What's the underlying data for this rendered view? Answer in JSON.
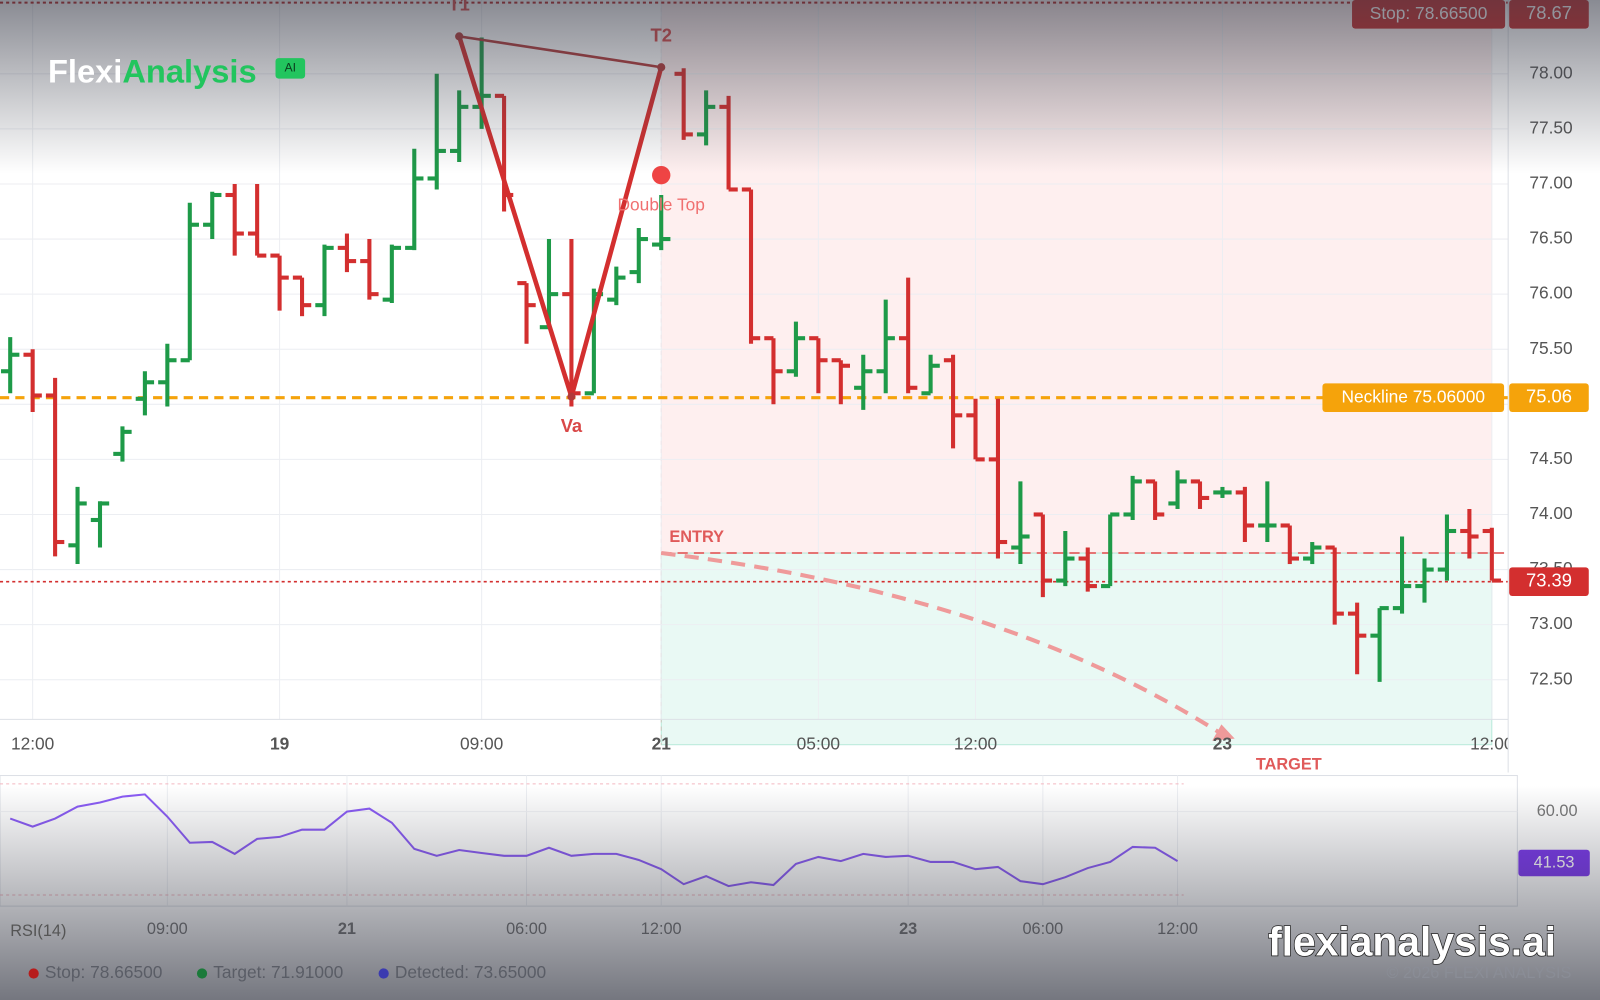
{
  "chart_data": {
    "type": "ohlc",
    "categories": [
      null,
      "12:00",
      null,
      null,
      null,
      null,
      null,
      null,
      null,
      null,
      null,
      null,
      "19",
      null,
      null,
      null,
      null,
      null,
      null,
      null,
      null,
      "09:00",
      null,
      null,
      null,
      null,
      null,
      null,
      null,
      "21",
      null,
      null,
      null,
      null,
      null,
      null,
      "05:00",
      null,
      null,
      null,
      null,
      null,
      null,
      "12:00",
      null,
      null,
      null,
      null,
      null,
      null,
      null,
      null,
      null,
      null,
      "23",
      null,
      null,
      null,
      null,
      null,
      null,
      null,
      null,
      null,
      null,
      null,
      "12:00"
    ],
    "open": [
      75.3,
      75.45,
      75.08,
      73.72,
      73.95,
      74.55,
      75.05,
      75.2,
      75.4,
      76.63,
      76.9,
      76.55,
      76.35,
      76.15,
      75.9,
      76.42,
      76.3,
      75.95,
      76.42,
      77.05,
      77.3,
      77.7,
      77.8,
      76.1,
      75.7,
      76.0,
      75.1,
      75.95,
      76.2,
      76.45,
      78.0,
      77.45,
      77.7,
      76.95,
      75.6,
      75.3,
      75.6,
      75.4,
      75.15,
      75.3,
      75.6,
      75.1,
      75.4,
      74.9,
      74.5,
      73.7,
      74.0,
      73.4,
      73.6,
      73.35,
      74.0,
      74.3,
      74.1,
      74.3,
      74.2,
      74.2,
      73.9,
      73.9,
      73.6,
      73.7,
      73.1,
      72.9,
      73.15,
      73.35,
      73.5,
      73.85,
      73.85
    ],
    "high": [
      75.61,
      75.5,
      75.24,
      74.25,
      74.12,
      74.8,
      75.3,
      75.55,
      76.83,
      76.93,
      77.0,
      77.0,
      76.35,
      76.15,
      76.45,
      76.55,
      76.5,
      76.45,
      77.32,
      78.0,
      77.85,
      78.33,
      77.8,
      76.1,
      76.5,
      76.5,
      76.05,
      76.25,
      76.6,
      76.9,
      78.05,
      77.85,
      77.8,
      76.95,
      75.6,
      75.75,
      75.6,
      75.4,
      75.45,
      75.95,
      76.15,
      75.45,
      75.45,
      75.05,
      75.05,
      74.3,
      74.0,
      73.85,
      73.7,
      74.0,
      74.35,
      74.3,
      74.4,
      74.3,
      74.25,
      74.25,
      74.3,
      73.9,
      73.75,
      73.7,
      73.2,
      73.15,
      73.8,
      73.6,
      74.0,
      74.05,
      73.88
    ],
    "low": [
      75.1,
      74.93,
      73.62,
      73.55,
      73.7,
      74.48,
      74.9,
      74.98,
      75.4,
      76.5,
      76.35,
      76.35,
      75.85,
      75.8,
      75.8,
      76.2,
      75.95,
      75.92,
      76.4,
      76.95,
      77.2,
      77.5,
      76.75,
      75.55,
      75.7,
      74.98,
      75.1,
      75.9,
      76.1,
      76.4,
      77.4,
      77.35,
      76.95,
      75.55,
      75.0,
      75.25,
      75.1,
      75.0,
      74.95,
      75.1,
      75.1,
      75.1,
      74.6,
      74.5,
      73.6,
      73.55,
      73.25,
      73.35,
      73.3,
      73.35,
      73.95,
      73.95,
      74.05,
      74.05,
      74.15,
      73.75,
      73.75,
      73.55,
      73.55,
      73.0,
      72.55,
      72.48,
      73.1,
      73.2,
      73.4,
      73.6,
      73.4
    ],
    "close": [
      75.45,
      75.08,
      73.75,
      74.1,
      74.1,
      74.75,
      75.2,
      75.4,
      76.63,
      76.9,
      76.55,
      76.35,
      76.15,
      75.9,
      76.42,
      76.3,
      76.0,
      76.42,
      77.05,
      77.3,
      77.7,
      77.8,
      76.9,
      75.9,
      76.0,
      75.1,
      76.0,
      76.15,
      76.5,
      76.5,
      77.45,
      77.7,
      76.95,
      75.6,
      75.3,
      75.6,
      75.4,
      75.35,
      75.3,
      75.6,
      75.15,
      75.35,
      74.9,
      74.5,
      73.75,
      73.8,
      73.4,
      73.6,
      73.35,
      74.0,
      74.3,
      74.0,
      74.3,
      74.15,
      74.2,
      73.9,
      73.9,
      73.6,
      73.7,
      73.1,
      72.9,
      73.15,
      73.35,
      73.5,
      73.85,
      73.8,
      73.4
    ],
    "up_color": "#1e9a48",
    "down_color": "#d32f2f",
    "ylim": [
      72.14,
      78.67
    ],
    "yticks": [
      {
        "value": 72.5,
        "label": "72.50"
      },
      {
        "value": 73,
        "label": "73.00"
      },
      {
        "value": 73.5,
        "label": "73.50"
      },
      {
        "value": 74,
        "label": "74.00"
      },
      {
        "value": 74.5,
        "label": "74.50"
      },
      {
        "value": 75,
        "label": "75.00"
      },
      {
        "value": 75.5,
        "label": "75.50"
      },
      {
        "value": 76,
        "label": "76.00"
      },
      {
        "value": 76.5,
        "label": "76.50"
      },
      {
        "value": 77,
        "label": "77.00"
      },
      {
        "value": 77.5,
        "label": "77.50"
      },
      {
        "value": 78,
        "label": "78.00"
      }
    ],
    "grid": true,
    "pattern": {
      "label": "Double Top",
      "color": "#d32f2f",
      "marker": 77.08,
      "points": [
        {
          "label": "T1",
          "x": 20,
          "y": 78.34
        },
        {
          "label": "Va",
          "x": 25,
          "y": 75.07
        },
        {
          "label": "T2",
          "x": 29,
          "y": 78.06
        }
      ]
    },
    "neckline": {
      "value": 75.06,
      "label": "Neckline 75.06000",
      "color": "#f5a30b"
    },
    "stop": {
      "value": 78.665,
      "label": "Stop: 78.66500",
      "tag": "78.67",
      "color": "#b71c1c"
    },
    "entry": {
      "value": 73.65,
      "label": "ENTRY",
      "legend": "Detected: 73.65000",
      "x": 29,
      "color": "#3b3bb0"
    },
    "target": {
      "value": 71.91,
      "label": "TARGET",
      "legend": "Target: 71.91000",
      "x": 54,
      "color": "#1b7a3a"
    },
    "last": 73.39,
    "rsi": {
      "label": "RSI(14)",
      "color": "#8b5cf6",
      "categories": [
        null,
        null,
        null,
        null,
        null,
        null,
        null,
        "09:00",
        null,
        null,
        null,
        null,
        null,
        null,
        null,
        "21",
        null,
        null,
        null,
        null,
        null,
        null,
        null,
        "06:00",
        null,
        null,
        null,
        null,
        null,
        "12:00",
        null,
        null,
        null,
        null,
        null,
        null,
        null,
        null,
        null,
        null,
        "23",
        null,
        null,
        null,
        null,
        null,
        "06:00",
        null,
        null,
        null,
        null,
        null,
        "12:00"
      ],
      "values": [
        57.5,
        54.6,
        57.5,
        61.8,
        63.3,
        65.4,
        66.2,
        58.2,
        48.8,
        49.1,
        44.8,
        50.2,
        50.9,
        53.5,
        53.5,
        60.0,
        61.1,
        56.0,
        46.6,
        44.1,
        46.2,
        45.1,
        44.1,
        44.1,
        47.0,
        44.1,
        44.8,
        44.8,
        42.6,
        39.3,
        33.9,
        36.8,
        33.2,
        34.6,
        33.6,
        41.2,
        43.7,
        42.2,
        44.8,
        43.7,
        44.1,
        41.9,
        41.9,
        39.3,
        40.1,
        35.0,
        33.9,
        36.4,
        39.7,
        41.9,
        47.3,
        47.0,
        42.2
      ],
      "ylim": [
        26,
        73
      ],
      "yticks": [
        {
          "value": 60,
          "label": "60.00"
        }
      ],
      "levels": [
        70,
        30
      ],
      "last": 41.53
    }
  },
  "brand": {
    "first": "Flexi",
    "second": "Analysis",
    "badge": "AI"
  },
  "watermark": "flexianalysis.ai",
  "copyright": "© 2026 FLEXI ANALYSIS"
}
